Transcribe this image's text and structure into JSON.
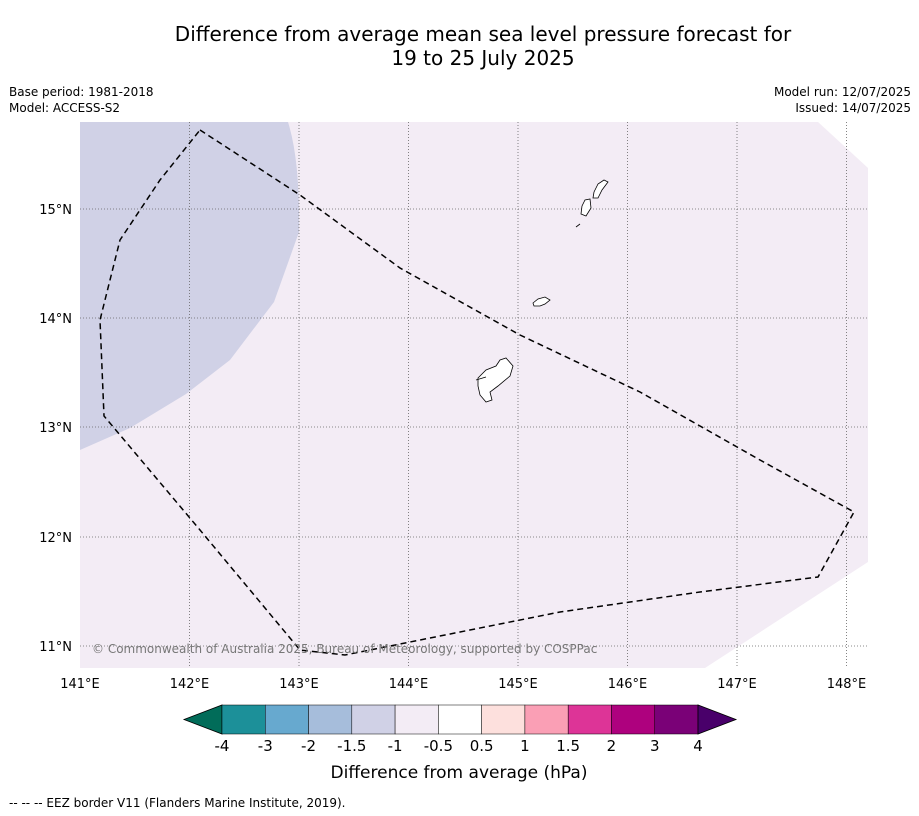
{
  "title": {
    "line1": "Difference from average mean sea level pressure forecast for",
    "line2": "19 to 25 July 2025"
  },
  "meta": {
    "base_period": "Base period: 1981-2018",
    "model": "Model: ACCESS-S2",
    "model_run": "Model run: 12/07/2025",
    "issued": "Issued: 14/07/2025"
  },
  "map": {
    "lat_labels": [
      "15°N",
      "14°N",
      "13°N",
      "12°N",
      "11°N"
    ],
    "lon_labels": [
      "141°E",
      "142°E",
      "143°E",
      "144°E",
      "145°E",
      "146°E",
      "147°E",
      "148°E"
    ],
    "copyright": "© Commonwealth of Australia 2025, Bureau of Meteorology, supported by COSPPac",
    "field_colors": {
      "minus_1_5_to_minus_1": "#d0d1e6",
      "minus_1_to_minus_0_5": "#f3ecf5"
    }
  },
  "colorbar": {
    "tick_labels": [
      "-4",
      "-3",
      "-2",
      "-1.5",
      "-1",
      "-0.5",
      "0.5",
      "1",
      "1.5",
      "2",
      "3",
      "4"
    ],
    "colors": [
      "#016c59",
      "#1c9099",
      "#67a9cf",
      "#a6bddb",
      "#d0d1e6",
      "#f3ecf5",
      "#ffffff",
      "#fde0dd",
      "#fa9fb5",
      "#dd3497",
      "#ae017e",
      "#7a0177",
      "#49006a"
    ],
    "label": "Difference from average (hPa)"
  },
  "footer": "--  --  -- EEZ border V11 (Flanders Marine Institute, 2019)."
}
